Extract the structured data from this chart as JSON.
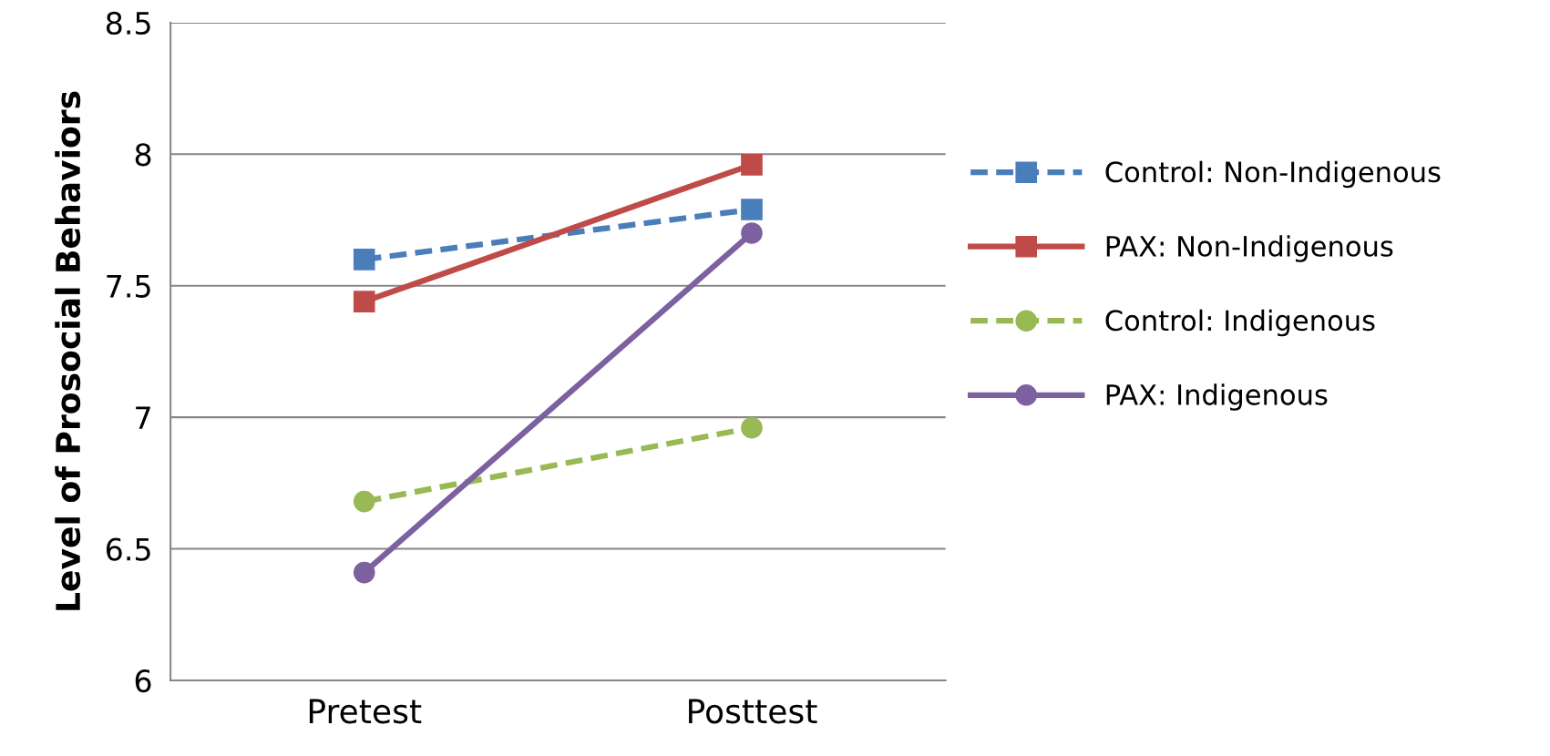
{
  "chart_data": {
    "type": "line",
    "ylabel": "Level of Prosocial Behaviors",
    "categories": [
      "Pretest",
      "Posttest"
    ],
    "series": [
      {
        "name": "Control: Non-Indigenous",
        "color": "#4a7ebb",
        "values": [
          7.6,
          7.79
        ],
        "line_style": "dashed",
        "marker": "square"
      },
      {
        "name": "PAX: Non-Indigenous",
        "color": "#be4b48",
        "values": [
          7.44,
          7.96
        ],
        "line_style": "solid",
        "marker": "square"
      },
      {
        "name": "Control: Indigenous",
        "color": "#98b954",
        "values": [
          6.68,
          6.96
        ],
        "line_style": "dashed",
        "marker": "circle"
      },
      {
        "name": "PAX: Indigenous",
        "color": "#7d60a0",
        "values": [
          6.41,
          7.7
        ],
        "line_style": "solid",
        "marker": "circle"
      }
    ],
    "ylim": [
      6,
      8.5
    ],
    "yticks": [
      6,
      6.5,
      7,
      7.5,
      8,
      8.5
    ],
    "grid": "y",
    "legend": "right"
  }
}
